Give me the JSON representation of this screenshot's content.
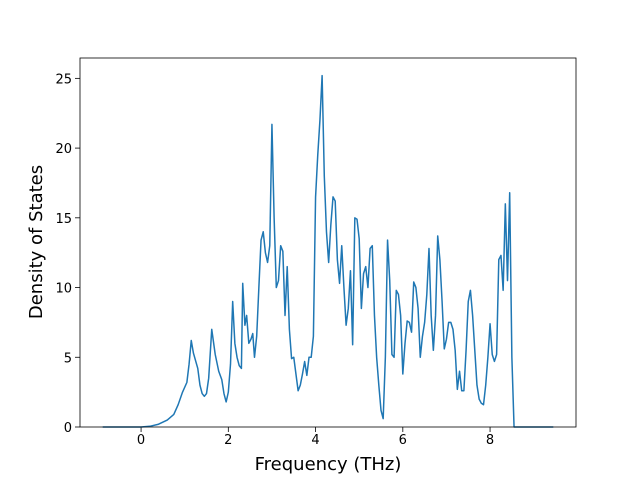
{
  "chart_data": {
    "type": "line",
    "xlabel": "Frequency (THz)",
    "ylabel": "Density of States",
    "color": "#1f77b4",
    "x": [
      -0.88,
      -0.5,
      0,
      0.2,
      0.4,
      0.6,
      0.75,
      0.85,
      0.95,
      1.05,
      1.1,
      1.15,
      1.2,
      1.3,
      1.35,
      1.4,
      1.45,
      1.5,
      1.55,
      1.62,
      1.7,
      1.78,
      1.85,
      1.9,
      1.95,
      2.0,
      2.05,
      2.1,
      2.15,
      2.2,
      2.25,
      2.3,
      2.33,
      2.38,
      2.42,
      2.47,
      2.52,
      2.56,
      2.6,
      2.65,
      2.7,
      2.75,
      2.8,
      2.85,
      2.9,
      2.95,
      3.0,
      3.05,
      3.1,
      3.15,
      3.2,
      3.25,
      3.3,
      3.35,
      3.4,
      3.45,
      3.5,
      3.55,
      3.6,
      3.65,
      3.7,
      3.75,
      3.8,
      3.85,
      3.9,
      3.95,
      4.0,
      4.05,
      4.1,
      4.15,
      4.2,
      4.25,
      4.3,
      4.35,
      4.4,
      4.45,
      4.5,
      4.55,
      4.6,
      4.65,
      4.7,
      4.75,
      4.8,
      4.85,
      4.9,
      4.95,
      5.0,
      5.05,
      5.1,
      5.15,
      5.2,
      5.25,
      5.3,
      5.35,
      5.4,
      5.45,
      5.5,
      5.55,
      5.6,
      5.65,
      5.7,
      5.75,
      5.8,
      5.85,
      5.9,
      5.95,
      6.0,
      6.05,
      6.1,
      6.15,
      6.2,
      6.25,
      6.3,
      6.35,
      6.4,
      6.45,
      6.5,
      6.55,
      6.6,
      6.65,
      6.7,
      6.75,
      6.8,
      6.85,
      6.9,
      6.95,
      7.0,
      7.05,
      7.1,
      7.15,
      7.2,
      7.25,
      7.3,
      7.35,
      7.4,
      7.45,
      7.5,
      7.55,
      7.6,
      7.65,
      7.7,
      7.75,
      7.8,
      7.85,
      7.9,
      7.95,
      8.0,
      8.05,
      8.1,
      8.15,
      8.2,
      8.25,
      8.3,
      8.35,
      8.4,
      8.45,
      8.5,
      8.55,
      8.7,
      9.0,
      9.45
    ],
    "values": [
      0,
      0,
      0,
      0.05,
      0.2,
      0.5,
      0.9,
      1.6,
      2.5,
      3.2,
      4.5,
      6.2,
      5.3,
      4.2,
      3.0,
      2.4,
      2.2,
      2.4,
      3.5,
      7.0,
      5.2,
      4.0,
      3.4,
      2.4,
      1.8,
      2.5,
      4.5,
      9.0,
      6.0,
      5.0,
      4.4,
      4.2,
      10.3,
      7.3,
      8.0,
      6.0,
      6.3,
      6.7,
      5.0,
      6.5,
      10.0,
      13.4,
      14.0,
      12.5,
      11.8,
      13.0,
      21.7,
      15.0,
      10.0,
      10.5,
      13.0,
      12.6,
      8.0,
      11.5,
      7.0,
      4.9,
      5.0,
      3.8,
      2.6,
      3.0,
      3.8,
      4.7,
      3.7,
      5.0,
      5.0,
      6.5,
      16.5,
      19.5,
      22.0,
      25.2,
      18.0,
      14.0,
      11.8,
      14.5,
      16.5,
      16.2,
      12.0,
      10.3,
      13.0,
      10.0,
      7.3,
      8.5,
      11.2,
      5.9,
      15.0,
      14.9,
      13.5,
      8.5,
      11.0,
      11.5,
      10.0,
      12.8,
      13.0,
      8.0,
      5.0,
      3.0,
      1.2,
      0.6,
      5.0,
      13.4,
      10.5,
      5.2,
      5.0,
      9.8,
      9.5,
      8.0,
      3.8,
      6.0,
      7.6,
      7.5,
      6.8,
      10.4,
      10.0,
      8.5,
      5.0,
      6.5,
      7.5,
      9.5,
      12.8,
      8.0,
      5.5,
      8.0,
      13.7,
      12.0,
      9.0,
      5.6,
      6.3,
      7.5,
      7.5,
      7.0,
      5.5,
      2.7,
      4.0,
      2.6,
      2.6,
      5.5,
      9.0,
      9.8,
      8.0,
      5.5,
      3.0,
      2.0,
      1.7,
      1.6,
      3.0,
      5.0,
      7.4,
      5.2,
      4.7,
      5.2,
      12.0,
      12.3,
      9.8,
      16.0,
      10.5,
      16.8,
      5.0,
      0,
      0,
      0,
      0
    ],
    "xlim": [
      -1.4,
      9.97
    ],
    "xticks": [
      0,
      2,
      4,
      6,
      8
    ],
    "ylim": [
      0,
      26.46
    ],
    "yticks": [
      0,
      5,
      10,
      15,
      20,
      25
    ]
  }
}
